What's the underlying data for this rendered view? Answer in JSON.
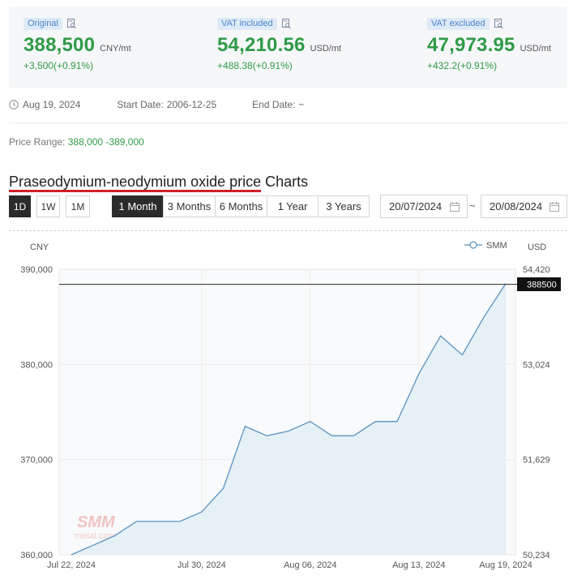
{
  "prices": [
    {
      "tag": "Original",
      "value": "388,500",
      "unit": "CNY/mt",
      "delta": "+3,500(+0.91%)"
    },
    {
      "tag": "VAT included",
      "value": "54,210.56",
      "unit": "USD/mt",
      "delta": "+488.38(+0.91%)"
    },
    {
      "tag": "VAT excluded",
      "value": "47,973.95",
      "unit": "USD/mt",
      "delta": "+432.2(+0.91%)"
    }
  ],
  "dates": {
    "current": "Aug 19, 2024",
    "start_label": "Start Date:",
    "start_value": "2006-12-25",
    "end_label": "End Date:",
    "end_value": "~"
  },
  "price_range": {
    "label": "Price Range:",
    "value": "388,000 -389,000"
  },
  "chart_title": {
    "highlight": "Praseodymium-neodymium oxide price",
    "rest": " Charts"
  },
  "range_buttons": [
    "1D",
    "1W",
    "1M"
  ],
  "period_buttons": [
    "1 Month",
    "3 Months",
    "6 Months",
    "1 Year",
    "3 Years"
  ],
  "active_period": "1 Month",
  "active_range": "1D",
  "date_from": "20/07/2024",
  "date_separator": "~",
  "date_to": "20/08/2024",
  "colors": {
    "up": "#2f9b46",
    "line": "#5b93c0",
    "area": "#e6f0f7",
    "active": "#2b2b2b",
    "accent_underline": "#d0202a"
  },
  "chart_data": {
    "type": "area",
    "left_unit": "CNY",
    "right_unit": "USD",
    "legend": "SMM",
    "watermark": "SMM",
    "watermark_sub": "metal.com",
    "current_marker": "388500",
    "current_value": 388500,
    "ylim": [
      360000,
      390000
    ],
    "yticks": [
      360000,
      370000,
      380000,
      390000
    ],
    "yticks_labels": [
      "360,000",
      "370,000",
      "380,000",
      "390,000"
    ],
    "y2ticks_labels": [
      "50,234",
      "51,629",
      "53,024",
      "54,420"
    ],
    "xticks": [
      "Jul 22, 2024",
      "Jul 30, 2024",
      "Aug 06, 2024",
      "Aug 13, 2024",
      "Aug 19, 2024"
    ],
    "xtick_index": [
      0,
      6,
      11,
      16,
      20
    ],
    "values": [
      360000,
      361000,
      362000,
      363500,
      363500,
      363500,
      364500,
      367000,
      373500,
      372500,
      373000,
      374000,
      372500,
      372500,
      374000,
      374000,
      379000,
      383000,
      381000,
      385000,
      388500
    ]
  }
}
